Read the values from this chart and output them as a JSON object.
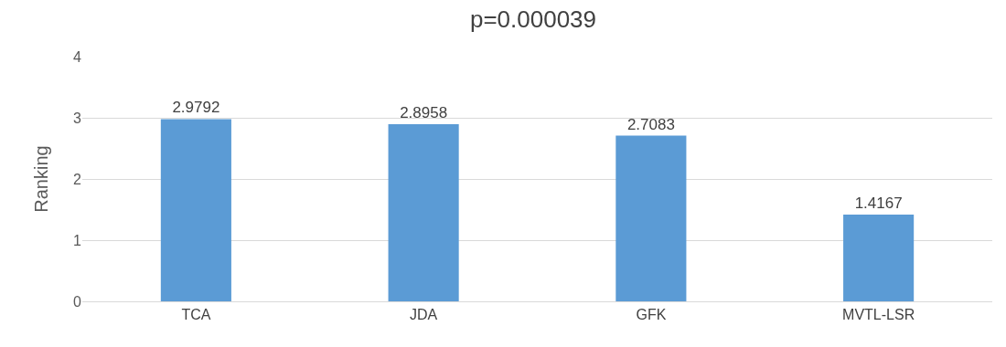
{
  "chart_data": {
    "type": "bar",
    "title": "p=0.000039",
    "ylabel": "Ranking",
    "categories": [
      "TCA",
      "JDA",
      "GFK",
      "MVTL-LSR"
    ],
    "values": [
      2.9792,
      2.8958,
      2.7083,
      1.4167
    ],
    "color": "#5b9bd5",
    "ylim": [
      0,
      4
    ],
    "yticks": [
      0,
      1,
      2,
      3,
      4
    ],
    "grid": "y",
    "data_labels": true
  }
}
